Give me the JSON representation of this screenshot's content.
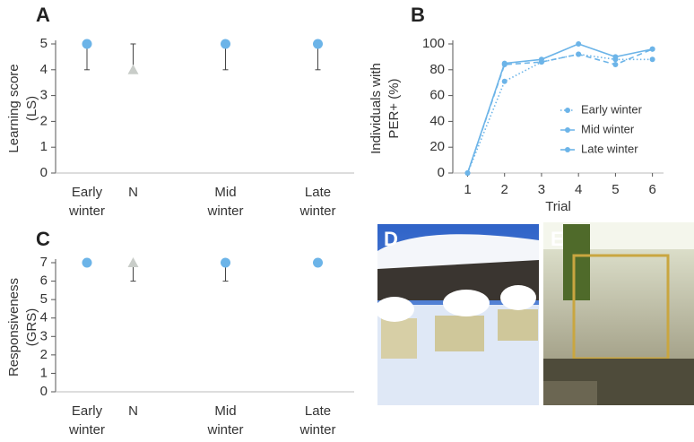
{
  "chart_data": [
    {
      "type": "dot",
      "panel": "A",
      "ylabel": [
        "Learning score",
        "(LS)"
      ],
      "categories": [
        [
          "Early",
          "winter"
        ],
        [
          "N"
        ],
        [
          "Mid",
          "winter"
        ],
        [
          "Late",
          "winter"
        ]
      ],
      "values": [
        5,
        4,
        5,
        5
      ],
      "whisker_ends": [
        4,
        5,
        4,
        4
      ],
      "colors": [
        "#6cb4e8",
        "#c9cdc9",
        "#6cb4e8",
        "#6cb4e8"
      ],
      "markers": [
        "circle",
        "triangle",
        "circle",
        "circle"
      ],
      "ylim": [
        0,
        5
      ],
      "yticks": [
        0,
        1,
        2,
        3,
        4,
        5
      ]
    },
    {
      "type": "line",
      "panel": "B",
      "ylabel": [
        "Individuals with",
        "PER+ (%)"
      ],
      "xlabel": "Trial",
      "x": [
        1,
        2,
        3,
        4,
        5,
        6
      ],
      "series": [
        {
          "name": "Early winter",
          "color": "#6cb4e8",
          "dash": "dotted",
          "values": [
            0,
            71,
            86,
            92,
            88,
            88
          ]
        },
        {
          "name": "Mid winter",
          "color": "#6cb4e8",
          "dash": "dashed",
          "values": [
            0,
            84,
            86,
            92,
            84,
            96
          ]
        },
        {
          "name": "Late winter",
          "color": "#6cb4e8",
          "dash": "solid",
          "values": [
            0,
            85,
            88,
            100,
            90,
            96
          ]
        }
      ],
      "xlim": [
        0.6,
        6.3
      ],
      "xticks": [
        1,
        2,
        3,
        4,
        5,
        6
      ],
      "ylim": [
        0,
        100
      ],
      "yticks": [
        0,
        20,
        40,
        60,
        80,
        100
      ],
      "legend": "right"
    },
    {
      "type": "dot",
      "panel": "C",
      "ylabel": [
        "Responsiveness",
        "(GRS)"
      ],
      "categories": [
        [
          "Early",
          "winter"
        ],
        [
          "N"
        ],
        [
          "Mid",
          "winter"
        ],
        [
          "Late",
          "winter"
        ]
      ],
      "values": [
        7,
        7,
        7,
        7
      ],
      "whisker_ends": [
        null,
        6,
        6,
        null
      ],
      "colors": [
        "#6cb4e8",
        "#c9cdc9",
        "#6cb4e8",
        "#6cb4e8"
      ],
      "markers": [
        "circle",
        "triangle",
        "circle",
        "circle"
      ],
      "ylim": [
        0,
        7
      ],
      "yticks": [
        0,
        1,
        2,
        3,
        4,
        5,
        6,
        7
      ]
    }
  ],
  "photos": [
    {
      "label": "D"
    },
    {
      "label": "E"
    }
  ]
}
